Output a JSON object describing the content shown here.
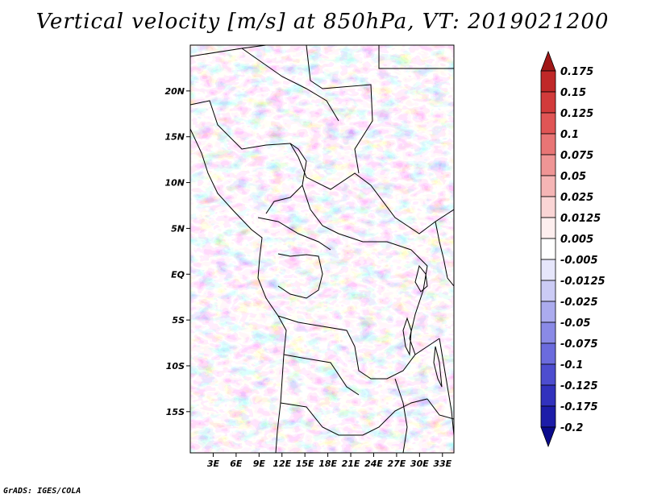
{
  "chart_data": {
    "type": "heatmap",
    "title": "Vertical velocity [m/s] at 850hPa, VT: 2019021200",
    "x_ticks": [
      "3E",
      "6E",
      "9E",
      "12E",
      "15E",
      "18E",
      "21E",
      "24E",
      "27E",
      "30E",
      "33E"
    ],
    "x_tick_values": [
      3,
      6,
      9,
      12,
      15,
      18,
      21,
      24,
      27,
      30,
      33
    ],
    "y_ticks": [
      "20N",
      "15N",
      "10N",
      "5N",
      "EQ",
      "5S",
      "10S",
      "15S"
    ],
    "y_tick_values": [
      20,
      15,
      10,
      5,
      0,
      -5,
      -10,
      -15
    ],
    "xlim": [
      0,
      34.5
    ],
    "ylim": [
      -19.5,
      25
    ],
    "colorbar": {
      "levels": [
        "0.175",
        "0.15",
        "0.125",
        "0.1",
        "0.075",
        "0.05",
        "0.025",
        "0.0125",
        "0.005",
        "-0.005",
        "-0.0125",
        "-0.025",
        "-0.05",
        "-0.075",
        "-0.1",
        "-0.125",
        "-0.175",
        "-0.2"
      ],
      "colors": [
        "#a01717",
        "#c02828",
        "#d23b3b",
        "#e05555",
        "#e87575",
        "#ef9595",
        "#f5b5b5",
        "#fad5d5",
        "#fdeeee",
        "#ffffff",
        "#e6e6fb",
        "#cbcbf5",
        "#ababee",
        "#8a8ae6",
        "#6b6bdd",
        "#4d4dcf",
        "#3232bd",
        "#1d1da8",
        "#0b0b8c"
      ]
    },
    "field_description_colors": {
      "positive": "#e05555",
      "negative": "#6b6bdd",
      "neutral": "#ffffff"
    }
  },
  "credit": "GrADS: IGES/COLA"
}
